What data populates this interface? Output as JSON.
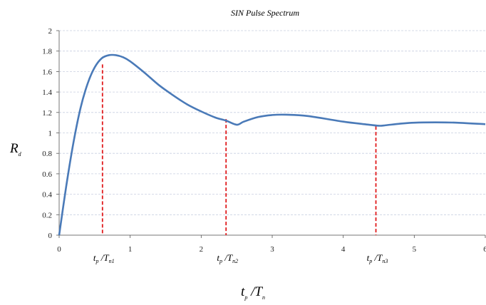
{
  "chart_data": {
    "type": "line",
    "title": "SIN Pulse Spectrum",
    "ylabel": {
      "main": "R",
      "sub": "d"
    },
    "xlabel": {
      "num": "t",
      "num_sub": "p",
      "den": "T",
      "den_sub": "n"
    },
    "xlim": [
      0,
      6
    ],
    "ylim": [
      0,
      2
    ],
    "x_ticks": [
      "0",
      "1",
      "2",
      "3",
      "4",
      "5",
      "6"
    ],
    "y_ticks": [
      "0",
      "0.2",
      "0.4",
      "0.6",
      "0.8",
      "1",
      "1.2",
      "1.4",
      "1.6",
      "1.8",
      "2"
    ],
    "grid": true,
    "line_color": "#4a7ab8",
    "marker_color": "#e0191b",
    "series": [
      {
        "x": [
          0,
          0.1,
          0.2,
          0.3,
          0.4,
          0.5,
          0.6,
          0.7,
          0.8,
          0.9,
          1.0,
          1.2,
          1.4,
          1.6,
          1.8,
          2.0,
          2.2,
          2.35,
          2.5,
          2.6,
          2.8,
          3.0,
          3.2,
          3.5,
          4.0,
          4.3,
          4.5,
          4.6,
          4.8,
          5.0,
          5.3,
          5.6,
          6.0
        ],
        "y": [
          0,
          0.48,
          0.9,
          1.24,
          1.48,
          1.64,
          1.73,
          1.76,
          1.76,
          1.74,
          1.7,
          1.59,
          1.47,
          1.37,
          1.28,
          1.21,
          1.15,
          1.12,
          1.08,
          1.11,
          1.155,
          1.175,
          1.178,
          1.165,
          1.11,
          1.085,
          1.07,
          1.075,
          1.09,
          1.1,
          1.103,
          1.1,
          1.085
        ]
      }
    ],
    "markers": [
      {
        "x": 0.61,
        "y": 1.67,
        "label": {
          "num": "t",
          "num_sub": "p",
          "den": "T",
          "den_sub": "n1"
        }
      },
      {
        "x": 2.35,
        "y": 1.135,
        "label": {
          "num": "t",
          "num_sub": "p",
          "den": "T",
          "den_sub": "n2"
        }
      },
      {
        "x": 4.46,
        "y": 1.065,
        "label": {
          "num": "t",
          "num_sub": "p",
          "den": "T",
          "den_sub": "n3"
        }
      }
    ]
  }
}
